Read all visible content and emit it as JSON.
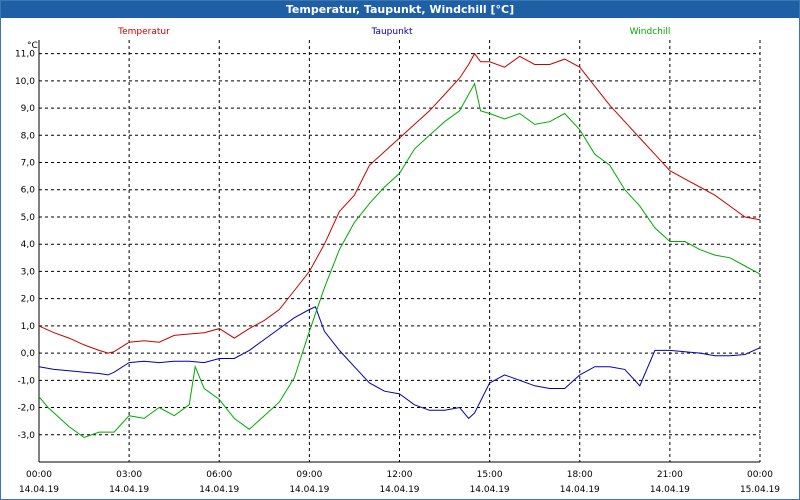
{
  "window": {
    "title": "Temperatur, Taupunkt, Windchill [°C]"
  },
  "colors": {
    "titlebar": "#1f5fa3",
    "grid": "#000000",
    "Temperatur": "#cc0000",
    "Taupunkt": "#0000bb",
    "Windchill": "#00aa00"
  },
  "chart_data": {
    "type": "line",
    "title": "Temperatur, Taupunkt, Windchill [°C]",
    "ylabel": "°C",
    "ylim": [
      -4,
      11.5
    ],
    "yticks": [
      -3,
      -2,
      -1,
      0,
      1,
      2,
      3,
      4,
      5,
      6,
      7,
      8,
      9,
      10,
      11
    ],
    "ytick_labels": [
      "-3,0",
      "-2,0",
      "-1,0",
      "0,0",
      "1,0",
      "2,0",
      "3,0",
      "4,0",
      "5,0",
      "6,0",
      "7,0",
      "8,0",
      "9,0",
      "10,0",
      "11,0"
    ],
    "xlim": [
      0,
      24
    ],
    "xticks": [
      0,
      3,
      6,
      9,
      12,
      15,
      18,
      21,
      24
    ],
    "xtick_labels": [
      [
        "00:00",
        "14.04.19"
      ],
      [
        "03:00",
        "14.04.19"
      ],
      [
        "06:00",
        "14.04.19"
      ],
      [
        "09:00",
        "14.04.19"
      ],
      [
        "12:00",
        "14.04.19"
      ],
      [
        "15:00",
        "14.04.19"
      ],
      [
        "18:00",
        "14.04.19"
      ],
      [
        "21:00",
        "14.04.19"
      ],
      [
        "00:00",
        "15.04.19"
      ]
    ],
    "grid": true,
    "legend": "top",
    "series": [
      {
        "name": "Temperatur",
        "color": "#cc0000",
        "x": [
          0,
          0.5,
          1,
          1.5,
          2,
          2.3,
          2.5,
          3,
          3.5,
          4,
          4.5,
          5,
          5.5,
          6,
          6.5,
          7,
          7.5,
          8,
          8.5,
          9,
          9.5,
          10,
          10.5,
          11,
          11.5,
          12,
          12.5,
          13,
          13.5,
          14,
          14.3,
          14.5,
          14.7,
          15,
          15.5,
          16,
          16.5,
          17,
          17.5,
          18,
          18.5,
          19,
          19.5,
          20,
          20.5,
          21,
          21.5,
          22,
          22.5,
          23,
          23.5,
          24
        ],
        "y": [
          1.0,
          0.75,
          0.55,
          0.3,
          0.1,
          0.0,
          0.05,
          0.4,
          0.45,
          0.4,
          0.65,
          0.7,
          0.75,
          0.9,
          0.55,
          0.9,
          1.2,
          1.6,
          2.3,
          3.0,
          4.0,
          5.2,
          5.8,
          6.9,
          7.4,
          7.9,
          8.4,
          8.9,
          9.5,
          10.1,
          10.6,
          11.0,
          10.7,
          10.7,
          10.5,
          10.9,
          10.6,
          10.6,
          10.8,
          10.5,
          9.8,
          9.1,
          8.5,
          7.9,
          7.3,
          6.7,
          6.4,
          6.1,
          5.8,
          5.4,
          5.0,
          4.9
        ]
      },
      {
        "name": "Taupunkt",
        "color": "#0000bb",
        "x": [
          0,
          0.5,
          1,
          1.5,
          2,
          2.3,
          2.5,
          3,
          3.5,
          4,
          4.5,
          5,
          5.5,
          6,
          6.5,
          7,
          7.5,
          8,
          8.5,
          9,
          9.2,
          9.5,
          10,
          10.5,
          11,
          11.5,
          12,
          12.5,
          13,
          13.5,
          14,
          14.3,
          14.5,
          15,
          15.5,
          16,
          16.5,
          17,
          17.5,
          18,
          18.5,
          19,
          19.5,
          20,
          20.5,
          21,
          21.5,
          22,
          22.5,
          23,
          23.5,
          24
        ],
        "y": [
          -0.5,
          -0.6,
          -0.65,
          -0.7,
          -0.75,
          -0.8,
          -0.7,
          -0.35,
          -0.3,
          -0.35,
          -0.3,
          -0.3,
          -0.35,
          -0.2,
          -0.2,
          0.1,
          0.5,
          0.9,
          1.3,
          1.6,
          1.7,
          0.8,
          0.1,
          -0.5,
          -1.1,
          -1.4,
          -1.5,
          -1.9,
          -2.1,
          -2.1,
          -2.0,
          -2.4,
          -2.2,
          -1.1,
          -0.8,
          -1.0,
          -1.2,
          -1.3,
          -1.3,
          -0.8,
          -0.5,
          -0.5,
          -0.6,
          -1.2,
          0.1,
          0.1,
          0.05,
          0.0,
          -0.1,
          -0.1,
          -0.05,
          0.2
        ]
      },
      {
        "name": "Windchill",
        "color": "#00aa00",
        "x": [
          0,
          0.3,
          0.7,
          1,
          1.5,
          2,
          2.5,
          3,
          3.5,
          4,
          4.5,
          5,
          5.2,
          5.5,
          6,
          6.5,
          7,
          7.5,
          8,
          8.5,
          9,
          9.5,
          10,
          10.5,
          11,
          11.5,
          12,
          12.5,
          13,
          13.5,
          14,
          14.5,
          14.7,
          15,
          15.5,
          16,
          16.5,
          17,
          17.5,
          18,
          18.5,
          19,
          19.5,
          20,
          20.5,
          21,
          21.5,
          22,
          22.5,
          23,
          23.5,
          24
        ],
        "y": [
          -1.6,
          -2.0,
          -2.4,
          -2.7,
          -3.1,
          -2.9,
          -2.9,
          -2.3,
          -2.4,
          -2.0,
          -2.3,
          -1.9,
          -0.5,
          -1.3,
          -1.7,
          -2.4,
          -2.8,
          -2.3,
          -1.8,
          -0.9,
          0.8,
          2.4,
          3.8,
          4.8,
          5.5,
          6.1,
          6.6,
          7.5,
          8.0,
          8.5,
          8.9,
          9.9,
          8.9,
          8.8,
          8.6,
          8.8,
          8.4,
          8.5,
          8.8,
          8.2,
          7.3,
          6.9,
          6.0,
          5.4,
          4.6,
          4.1,
          4.1,
          3.8,
          3.6,
          3.5,
          3.2,
          2.9
        ]
      }
    ]
  }
}
